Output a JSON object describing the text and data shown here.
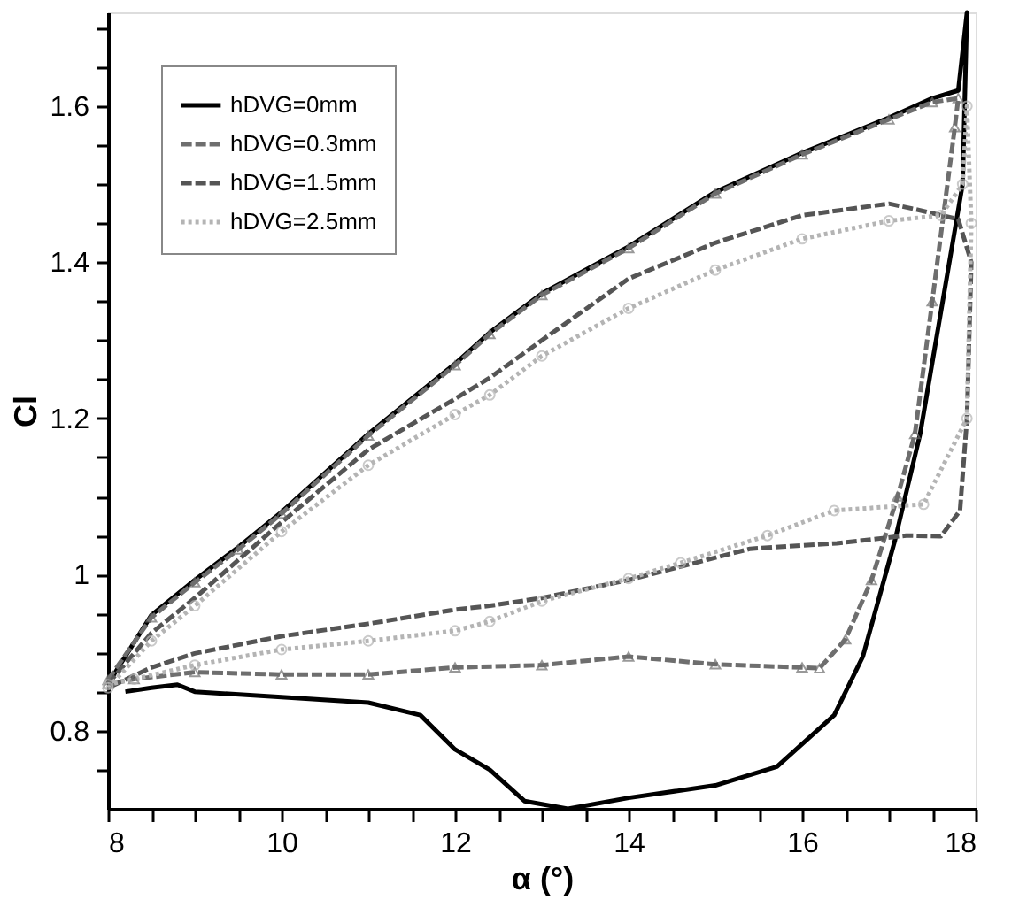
{
  "chart_data": {
    "type": "line",
    "xlabel": "α (°)",
    "ylabel": "Cl",
    "xlim": [
      8,
      18
    ],
    "ylim": [
      0.7,
      1.72
    ],
    "xticks": [
      8,
      {
        "value": 8.5,
        "label": null
      },
      {
        "value": 9,
        "label": null
      },
      {
        "value": 9.5,
        "label": null
      },
      10,
      {
        "value": 10.5,
        "label": null
      },
      {
        "value": 11,
        "label": null
      },
      {
        "value": 11.5,
        "label": null
      },
      12,
      {
        "value": 12.5,
        "label": null
      },
      {
        "value": 13,
        "label": null
      },
      {
        "value": 13.5,
        "label": null
      },
      14,
      {
        "value": 14.5,
        "label": null
      },
      {
        "value": 15,
        "label": null
      },
      {
        "value": 15.5,
        "label": null
      },
      16,
      {
        "value": 16.5,
        "label": null
      },
      {
        "value": 17,
        "label": null
      },
      {
        "value": 17.5,
        "label": null
      },
      18
    ],
    "yticks": [
      {
        "value": 0.75,
        "label": null
      },
      0.8,
      {
        "value": 0.85,
        "label": null
      },
      {
        "value": 0.9,
        "label": null
      },
      {
        "value": 0.95,
        "label": null
      },
      1,
      {
        "value": 1.05,
        "label": null
      },
      {
        "value": 1.1,
        "label": null
      },
      {
        "value": 1.15,
        "label": null
      },
      1.2,
      {
        "value": 1.25,
        "label": null
      },
      {
        "value": 1.3,
        "label": null
      },
      {
        "value": 1.35,
        "label": null
      },
      1.4,
      {
        "value": 1.45,
        "label": null
      },
      {
        "value": 1.5,
        "label": null
      },
      {
        "value": 1.55,
        "label": null
      },
      1.6,
      {
        "value": 1.65,
        "label": null
      },
      {
        "value": 1.7,
        "label": null
      }
    ],
    "grid": false,
    "legend": "top left",
    "series": [
      {
        "name": "hDVG=0mm",
        "color": "#000000",
        "line_style": "solid",
        "marker": "none",
        "x": [
          8,
          8.5,
          9,
          9.5,
          10,
          11,
          12,
          12.4,
          13,
          14,
          15,
          16,
          17,
          17.5,
          17.8,
          17.9,
          17.85,
          17.36,
          17.07,
          16.7,
          16.37,
          15.71,
          15,
          14,
          13.3,
          12.8,
          12.4,
          12,
          11.6,
          11,
          10,
          9,
          8.8,
          8.5,
          8.2
        ],
        "values": [
          0.86,
          0.948,
          0.993,
          1.035,
          1.08,
          1.18,
          1.27,
          1.31,
          1.36,
          1.42,
          1.49,
          1.54,
          1.585,
          1.61,
          1.62,
          1.72,
          1.5,
          1.18,
          1.044,
          0.895,
          0.82,
          0.754,
          0.73,
          0.714,
          0.7,
          0.71,
          0.75,
          0.776,
          0.82,
          0.836,
          0.843,
          0.85,
          0.859,
          0.855,
          0.85
        ]
      },
      {
        "name": "hDVG=0.3mm",
        "color": "#6e6e6e",
        "line_style": "dashed",
        "marker": "triangle",
        "x": [
          8,
          8.5,
          9,
          9.5,
          10,
          11,
          12,
          12.4,
          13,
          14,
          15,
          16,
          17,
          17.5,
          17.8,
          17.76,
          17.5,
          17.3,
          17.1,
          16.8,
          16.5,
          16.2,
          16,
          15,
          14,
          13,
          12,
          11,
          10,
          9,
          8.3,
          8
        ],
        "values": [
          0.865,
          0.945,
          0.99,
          1.032,
          1.078,
          1.178,
          1.268,
          1.308,
          1.358,
          1.418,
          1.488,
          1.538,
          1.583,
          1.605,
          1.61,
          1.573,
          1.35,
          1.18,
          1.1,
          0.993,
          0.917,
          0.88,
          0.881,
          0.885,
          0.895,
          0.884,
          0.881,
          0.872,
          0.872,
          0.875,
          0.866,
          0.86
        ]
      },
      {
        "name": "hDVG=1.5mm",
        "color": "#555555",
        "line_style": "dashed",
        "marker": "none",
        "x": [
          8,
          8.5,
          9,
          10,
          11,
          12,
          12.4,
          13,
          14,
          15,
          16,
          17,
          17.3,
          17.8,
          17.95,
          17.9,
          17.82,
          17.6,
          17.2,
          16.4,
          15.4,
          14,
          13,
          12.4,
          12,
          11,
          10,
          9,
          8.5,
          8
        ],
        "values": [
          0.86,
          0.925,
          0.97,
          1.067,
          1.16,
          1.225,
          1.252,
          1.3,
          1.379,
          1.425,
          1.46,
          1.475,
          1.468,
          1.455,
          1.4,
          1.2,
          1.082,
          1.049,
          1.05,
          1.04,
          1.033,
          0.993,
          0.97,
          0.96,
          0.955,
          0.937,
          0.921,
          0.899,
          0.881,
          0.855
        ]
      },
      {
        "name": "hDVG=2.5mm",
        "color": "#b4b4b4",
        "line_style": "dotted",
        "marker": "circle",
        "x": [
          8,
          8.5,
          9,
          10,
          11,
          12,
          12.4,
          13,
          14,
          15,
          16,
          17,
          17.6,
          17.85,
          17.9,
          17.95,
          17.9,
          17.4,
          16.37,
          15.6,
          14.6,
          14,
          13,
          12.4,
          12,
          11,
          10,
          9,
          8.3,
          8
        ],
        "values": [
          0.855,
          0.915,
          0.96,
          1.055,
          1.14,
          1.205,
          1.23,
          1.28,
          1.341,
          1.39,
          1.43,
          1.453,
          1.46,
          1.5,
          1.6,
          1.45,
          1.2,
          1.09,
          1.082,
          1.05,
          1.015,
          0.995,
          0.966,
          0.94,
          0.928,
          0.915,
          0.904,
          0.884,
          0.866,
          0.859
        ]
      }
    ]
  }
}
